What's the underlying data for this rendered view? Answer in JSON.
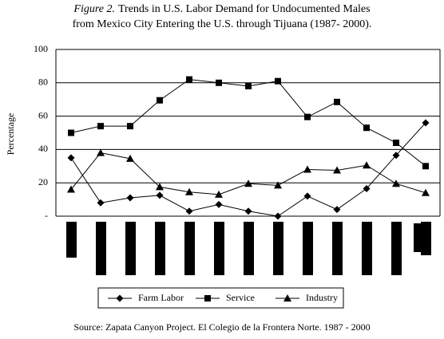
{
  "chart_data": {
    "type": "line",
    "title_label": "Figure 2.",
    "title": [
      "Trends in U.S. Labor Demand for Undocumented Males",
      "from Mexico City Entering the U.S. through Tijuana (1987- 2000)."
    ],
    "y_label": "Percentage",
    "source": "Source: Zapata Canyon Project. El Colegio de la Frontera Norte. 1987 - 2000",
    "categories": [
      null,
      null,
      null,
      null,
      null,
      null,
      null,
      null,
      null,
      null,
      null,
      null,
      null
    ],
    "series": [
      {
        "name": "Farm Labor",
        "color": "#000000",
        "marker": "diamond",
        "values": [
          35,
          8,
          11,
          12.5,
          3,
          7,
          3,
          0,
          12,
          4,
          16.5,
          36.5,
          56
        ]
      },
      {
        "name": "Service",
        "color": "#000000",
        "marker": "square",
        "values": [
          50,
          54,
          54,
          69.5,
          82,
          80,
          78,
          81,
          59.5,
          68.5,
          53,
          44,
          30
        ]
      },
      {
        "name": "Industry",
        "color": "#000000",
        "marker": "triangle",
        "values": [
          16,
          38,
          34.5,
          17.5,
          14.5,
          13,
          19.5,
          18.5,
          28,
          27.5,
          30.5,
          19.5,
          14
        ]
      }
    ],
    "ylim": [
      0,
      100
    ],
    "yticks": [
      {
        "value": 0,
        "label": "-"
      },
      20,
      40,
      60,
      80,
      100
    ],
    "grid": true,
    "legend": "bottom"
  }
}
